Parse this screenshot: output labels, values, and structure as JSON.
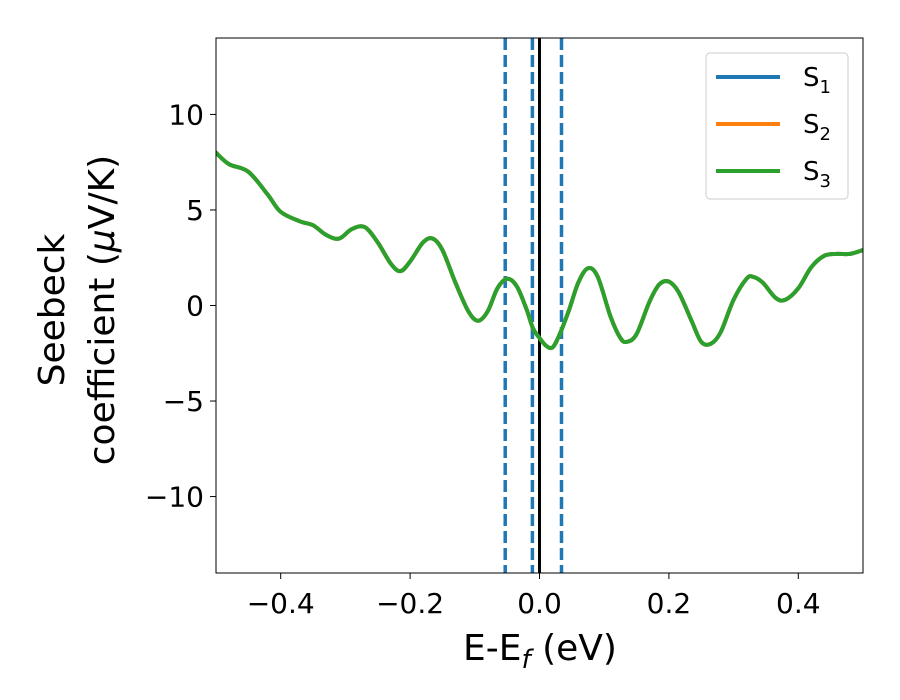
{
  "chart_data": {
    "type": "line",
    "title": "",
    "xlabel_main": "E-E",
    "xlabel_sub": "f",
    "xlabel_unit": " (eV)",
    "ylabel_line1": "Seebeck",
    "ylabel_line2_text": "coefficient  (",
    "ylabel_line2_mu": "μ",
    "ylabel_line2_unit": "V/K)",
    "xlim": [
      -0.5,
      0.5
    ],
    "ylim": [
      -14,
      14
    ],
    "xticks": [
      -0.4,
      -0.2,
      0.0,
      0.2,
      0.4
    ],
    "xtick_labels": [
      "−0.4",
      "−0.2",
      "0.0",
      "0.2",
      "0.4"
    ],
    "yticks": [
      -10,
      -5,
      0,
      5,
      10
    ],
    "ytick_labels": [
      "−10",
      "−5",
      "0",
      "5",
      "10"
    ],
    "grid": false,
    "legend_position": "top-right",
    "vlines": [
      {
        "x": -0.053,
        "style": "dashed",
        "color": "#1f77b4"
      },
      {
        "x": -0.011,
        "style": "dashed",
        "color": "#1f77b4"
      },
      {
        "x": 0.034,
        "style": "dashed",
        "color": "#1f77b4"
      },
      {
        "x": 0.0,
        "style": "solid",
        "color": "#000000"
      }
    ],
    "series": [
      {
        "name": "S",
        "sub": "1",
        "color": "#1f77b4",
        "points": [
          [
            -0.5,
            8.0
          ],
          [
            -0.48,
            7.4
          ],
          [
            -0.45,
            7.0
          ],
          [
            -0.42,
            5.8
          ],
          [
            -0.4,
            4.9
          ],
          [
            -0.37,
            4.4
          ],
          [
            -0.35,
            4.2
          ],
          [
            -0.33,
            3.7
          ],
          [
            -0.31,
            3.5
          ],
          [
            -0.29,
            4.0
          ],
          [
            -0.27,
            4.1
          ],
          [
            -0.25,
            3.3
          ],
          [
            -0.23,
            2.2
          ],
          [
            -0.215,
            1.8
          ],
          [
            -0.2,
            2.3
          ],
          [
            -0.18,
            3.3
          ],
          [
            -0.165,
            3.5
          ],
          [
            -0.15,
            2.9
          ],
          [
            -0.13,
            1.2
          ],
          [
            -0.11,
            -0.3
          ],
          [
            -0.095,
            -0.8
          ],
          [
            -0.08,
            -0.3
          ],
          [
            -0.065,
            0.9
          ],
          [
            -0.05,
            1.4
          ],
          [
            -0.035,
            1.0
          ],
          [
            -0.02,
            -0.2
          ],
          [
            -0.01,
            -1.2
          ],
          [
            0.0,
            -1.7
          ],
          [
            0.01,
            -2.1
          ],
          [
            0.02,
            -2.2
          ],
          [
            0.03,
            -1.6
          ],
          [
            0.045,
            -0.3
          ],
          [
            0.06,
            1.2
          ],
          [
            0.075,
            1.95
          ],
          [
            0.09,
            1.5
          ],
          [
            0.11,
            -0.6
          ],
          [
            0.125,
            -1.7
          ],
          [
            0.135,
            -1.9
          ],
          [
            0.15,
            -1.5
          ],
          [
            0.17,
            0.2
          ],
          [
            0.185,
            1.1
          ],
          [
            0.2,
            1.25
          ],
          [
            0.215,
            0.7
          ],
          [
            0.235,
            -0.8
          ],
          [
            0.25,
            -1.9
          ],
          [
            0.265,
            -2.0
          ],
          [
            0.28,
            -1.4
          ],
          [
            0.3,
            0.3
          ],
          [
            0.32,
            1.4
          ],
          [
            0.33,
            1.5
          ],
          [
            0.345,
            1.2
          ],
          [
            0.365,
            0.4
          ],
          [
            0.38,
            0.3
          ],
          [
            0.4,
            0.9
          ],
          [
            0.42,
            2.0
          ],
          [
            0.44,
            2.6
          ],
          [
            0.46,
            2.7
          ],
          [
            0.48,
            2.7
          ],
          [
            0.5,
            2.9
          ]
        ]
      },
      {
        "name": "S",
        "sub": "2",
        "color": "#ff7f0e",
        "points": [
          [
            -0.5,
            8.0
          ],
          [
            -0.48,
            7.4
          ],
          [
            -0.45,
            7.0
          ],
          [
            -0.42,
            5.8
          ],
          [
            -0.4,
            4.9
          ],
          [
            -0.37,
            4.4
          ],
          [
            -0.35,
            4.2
          ],
          [
            -0.33,
            3.7
          ],
          [
            -0.31,
            3.5
          ],
          [
            -0.29,
            4.0
          ],
          [
            -0.27,
            4.1
          ],
          [
            -0.25,
            3.3
          ],
          [
            -0.23,
            2.2
          ],
          [
            -0.215,
            1.8
          ],
          [
            -0.2,
            2.3
          ],
          [
            -0.18,
            3.3
          ],
          [
            -0.165,
            3.5
          ],
          [
            -0.15,
            2.9
          ],
          [
            -0.13,
            1.2
          ],
          [
            -0.11,
            -0.3
          ],
          [
            -0.095,
            -0.8
          ],
          [
            -0.08,
            -0.3
          ],
          [
            -0.065,
            0.9
          ],
          [
            -0.05,
            1.4
          ],
          [
            -0.035,
            1.0
          ],
          [
            -0.02,
            -0.2
          ],
          [
            -0.01,
            -1.2
          ],
          [
            0.0,
            -1.7
          ],
          [
            0.01,
            -2.1
          ],
          [
            0.02,
            -2.2
          ],
          [
            0.03,
            -1.6
          ],
          [
            0.045,
            -0.3
          ],
          [
            0.06,
            1.2
          ],
          [
            0.075,
            1.95
          ],
          [
            0.09,
            1.5
          ],
          [
            0.11,
            -0.6
          ],
          [
            0.125,
            -1.7
          ],
          [
            0.135,
            -1.9
          ],
          [
            0.15,
            -1.5
          ],
          [
            0.17,
            0.2
          ],
          [
            0.185,
            1.1
          ],
          [
            0.2,
            1.25
          ],
          [
            0.215,
            0.7
          ],
          [
            0.235,
            -0.8
          ],
          [
            0.25,
            -1.9
          ],
          [
            0.265,
            -2.0
          ],
          [
            0.28,
            -1.4
          ],
          [
            0.3,
            0.3
          ],
          [
            0.32,
            1.4
          ],
          [
            0.33,
            1.5
          ],
          [
            0.345,
            1.2
          ],
          [
            0.365,
            0.4
          ],
          [
            0.38,
            0.3
          ],
          [
            0.4,
            0.9
          ],
          [
            0.42,
            2.0
          ],
          [
            0.44,
            2.6
          ],
          [
            0.46,
            2.7
          ],
          [
            0.48,
            2.7
          ],
          [
            0.5,
            2.9
          ]
        ]
      },
      {
        "name": "S",
        "sub": "3",
        "color": "#2ca02c",
        "points": [
          [
            -0.5,
            8.0
          ],
          [
            -0.48,
            7.4
          ],
          [
            -0.45,
            7.0
          ],
          [
            -0.42,
            5.8
          ],
          [
            -0.4,
            4.9
          ],
          [
            -0.37,
            4.4
          ],
          [
            -0.35,
            4.2
          ],
          [
            -0.33,
            3.7
          ],
          [
            -0.31,
            3.5
          ],
          [
            -0.29,
            4.0
          ],
          [
            -0.27,
            4.1
          ],
          [
            -0.25,
            3.3
          ],
          [
            -0.23,
            2.2
          ],
          [
            -0.215,
            1.8
          ],
          [
            -0.2,
            2.3
          ],
          [
            -0.18,
            3.3
          ],
          [
            -0.165,
            3.5
          ],
          [
            -0.15,
            2.9
          ],
          [
            -0.13,
            1.2
          ],
          [
            -0.11,
            -0.3
          ],
          [
            -0.095,
            -0.8
          ],
          [
            -0.08,
            -0.3
          ],
          [
            -0.065,
            0.9
          ],
          [
            -0.05,
            1.4
          ],
          [
            -0.035,
            1.0
          ],
          [
            -0.02,
            -0.2
          ],
          [
            -0.01,
            -1.2
          ],
          [
            0.0,
            -1.7
          ],
          [
            0.01,
            -2.1
          ],
          [
            0.02,
            -2.2
          ],
          [
            0.03,
            -1.6
          ],
          [
            0.045,
            -0.3
          ],
          [
            0.06,
            1.2
          ],
          [
            0.075,
            1.95
          ],
          [
            0.09,
            1.5
          ],
          [
            0.11,
            -0.6
          ],
          [
            0.125,
            -1.7
          ],
          [
            0.135,
            -1.9
          ],
          [
            0.15,
            -1.5
          ],
          [
            0.17,
            0.2
          ],
          [
            0.185,
            1.1
          ],
          [
            0.2,
            1.25
          ],
          [
            0.215,
            0.7
          ],
          [
            0.235,
            -0.8
          ],
          [
            0.25,
            -1.9
          ],
          [
            0.265,
            -2.0
          ],
          [
            0.28,
            -1.4
          ],
          [
            0.3,
            0.3
          ],
          [
            0.32,
            1.4
          ],
          [
            0.33,
            1.5
          ],
          [
            0.345,
            1.2
          ],
          [
            0.365,
            0.4
          ],
          [
            0.38,
            0.3
          ],
          [
            0.4,
            0.9
          ],
          [
            0.42,
            2.0
          ],
          [
            0.44,
            2.6
          ],
          [
            0.46,
            2.7
          ],
          [
            0.48,
            2.7
          ],
          [
            0.5,
            2.9
          ]
        ]
      }
    ]
  }
}
